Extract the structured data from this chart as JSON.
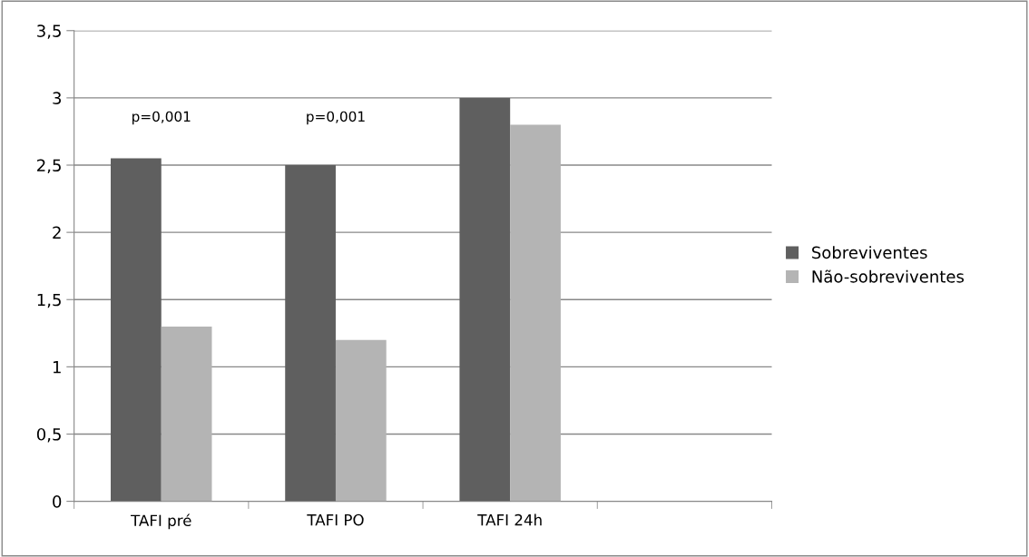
{
  "chart_data": {
    "type": "bar",
    "categories": [
      "TAFI pré",
      "TAFI PO",
      "TAFI 24h",
      null
    ],
    "series": [
      {
        "name": "Sobreviventes",
        "color": "#5f5f5f",
        "values": [
          2.55,
          2.5,
          3.0,
          null
        ]
      },
      {
        "name": "Não-sobreviventes",
        "color": "#b4b4b4",
        "values": [
          1.3,
          1.2,
          2.8,
          null
        ]
      }
    ],
    "ylim": [
      0,
      3.5
    ],
    "yticks": [
      {
        "value": 0,
        "label": "0"
      },
      {
        "value": 0.5,
        "label": "0,5"
      },
      {
        "value": 1,
        "label": "1"
      },
      {
        "value": 1.5,
        "label": "1,5"
      },
      {
        "value": 2,
        "label": "2"
      },
      {
        "value": 2.5,
        "label": "2,5"
      },
      {
        "value": 3,
        "label": "3"
      },
      {
        "value": 3.5,
        "label": "3,5"
      }
    ],
    "annotations": [
      "p=0,001",
      "p=0,001"
    ],
    "grid": "y",
    "legend": "right"
  }
}
